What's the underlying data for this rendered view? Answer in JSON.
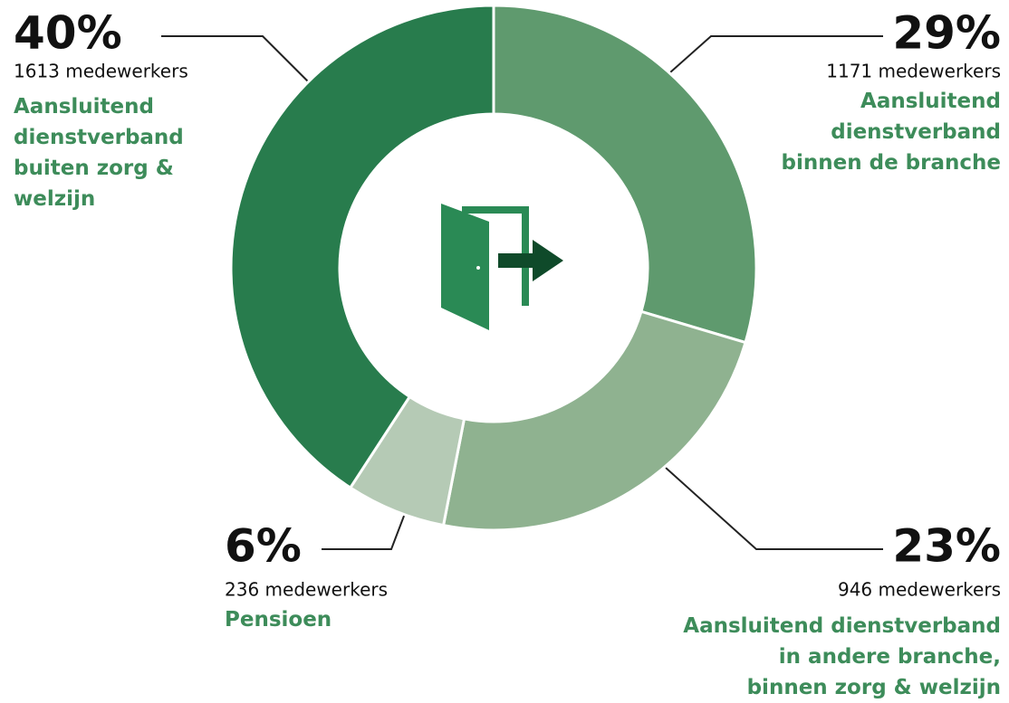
{
  "chart_data": {
    "type": "donut",
    "categories": [
      "Aansluitend\ndienstverband\nbinnen de branche",
      "Aansluitend dienstverband\nin andere branche,\nbinnen zorg & welzijn",
      "Pensioen",
      "Aansluitend\ndienstverband\nbuiten zorg &\nwelzijn"
    ],
    "values": [
      29,
      23,
      6,
      40
    ],
    "value_labels": [
      "29%",
      "23%",
      "6%",
      "40%"
    ],
    "count_labels": [
      "1171 medewerkers",
      "946 medewerkers",
      "236 medewerkers",
      "1613 medewerkers"
    ],
    "colors": [
      "#5f9a6e",
      "#8fb290",
      "#b5cab5",
      "#287c4d"
    ]
  }
}
